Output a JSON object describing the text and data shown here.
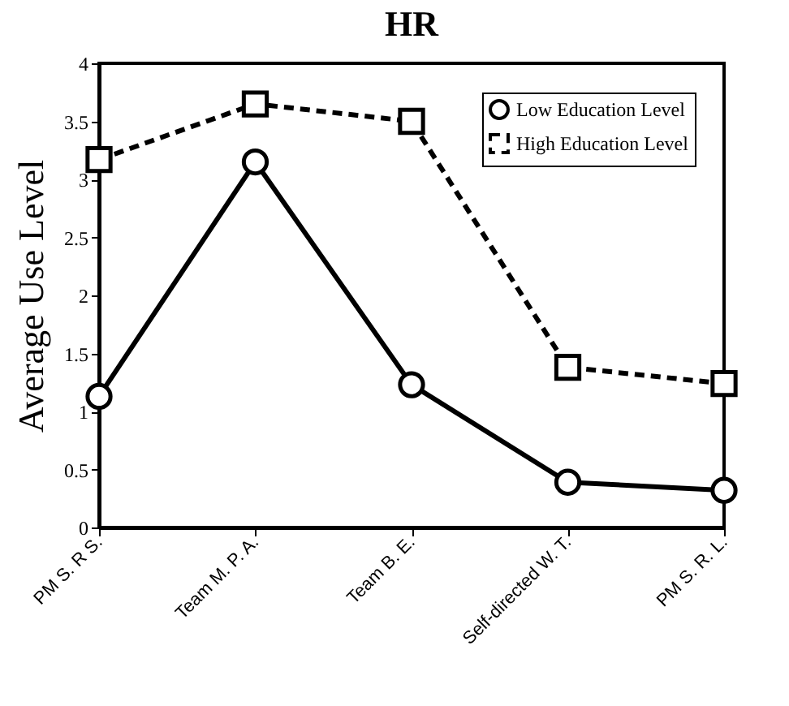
{
  "chart_data": {
    "type": "line",
    "title": "HR",
    "ylabel": "Average Use Level",
    "categories": [
      "PM S. R S.",
      "Team M. P. A.",
      "Team B. E.",
      "Self-directed W. T.",
      "PM S. R. L."
    ],
    "series": [
      {
        "name": "Low Education Level",
        "color": "#000000",
        "values": [
          1.13,
          3.15,
          1.23,
          0.39,
          0.32
        ],
        "marker": "circle",
        "line_style": "solid"
      },
      {
        "name": "High Education Level",
        "color": "#000000",
        "values": [
          3.17,
          3.65,
          3.5,
          1.38,
          1.24
        ],
        "marker": "square",
        "line_style": "dashed"
      }
    ],
    "ylim": [
      0,
      4
    ],
    "yticks": [
      0,
      0.5,
      1,
      1.5,
      2,
      2.5,
      3,
      3.5,
      4
    ],
    "grid": false,
    "legend": "top right"
  }
}
